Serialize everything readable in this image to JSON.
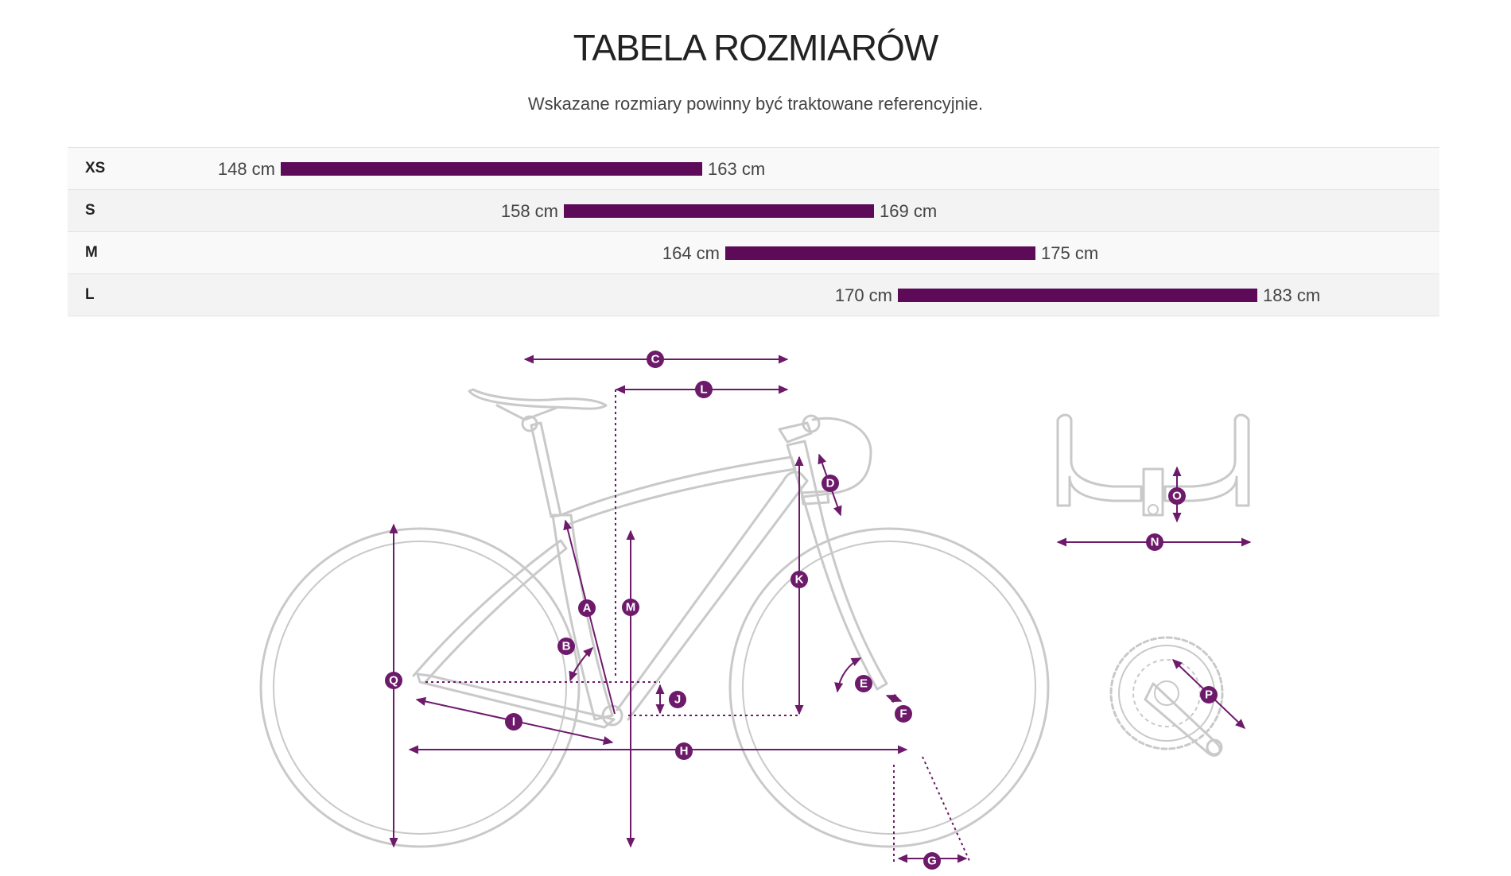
{
  "title": "TABELA ROZMIARÓW",
  "subtitle": "Wskazane rozmiary powinny być traktowane referencyjnie.",
  "sizes": [
    {
      "label": "XS",
      "min": "148 cm",
      "max": "163 cm"
    },
    {
      "label": "S",
      "min": "158 cm",
      "max": "169 cm"
    },
    {
      "label": "M",
      "min": "164 cm",
      "max": "175 cm"
    },
    {
      "label": "L",
      "min": "170 cm",
      "max": "183 cm"
    }
  ],
  "colors": {
    "accent": "#5d0a58",
    "frame": "#c9c9c9",
    "measure": "#6d1a6b"
  },
  "geometry_badges": {
    "A": "A",
    "B": "B",
    "C": "C",
    "D": "D",
    "E": "E",
    "F": "F",
    "G": "G",
    "H": "H",
    "I": "I",
    "J": "J",
    "K": "K",
    "L": "L",
    "M": "M",
    "N": "N",
    "O": "O",
    "P": "P",
    "Q": "Q"
  }
}
